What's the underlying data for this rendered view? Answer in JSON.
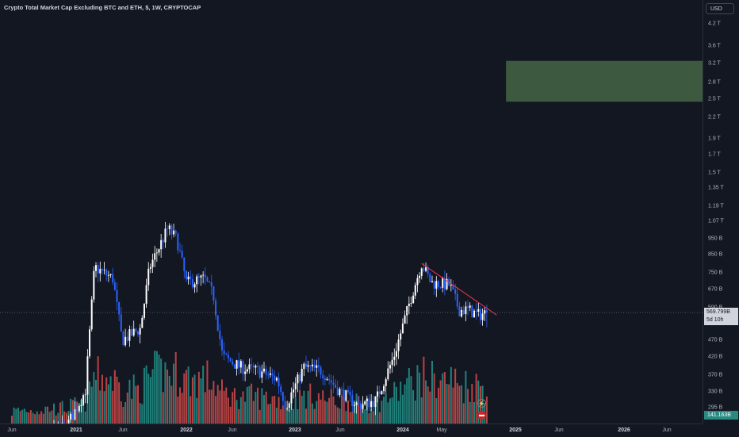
{
  "header": {
    "title": "Crypto Total Market Cap Excluding BTC and ETH, $, 1W, CRYPTOCAP",
    "currency": "USD"
  },
  "price_axis": {
    "labels": [
      "4.2 T",
      "3.6 T",
      "3.2 T",
      "2.8 T",
      "2.5 T",
      "2.2 T",
      "1.9 T",
      "1.7 T",
      "1.5 T",
      "1.35 T",
      "1.19 T",
      "1.07 T",
      "950 B",
      "850 B",
      "750 B",
      "670 B",
      "590 B",
      "530 B",
      "470 B",
      "420 B",
      "370 B",
      "330 B",
      "295 B"
    ],
    "last_price": "569.799B",
    "countdown": "5d 10h",
    "volume_value": "141.163B"
  },
  "time_axis": {
    "labels": [
      {
        "text": "Jun",
        "major": false
      },
      {
        "text": "2021",
        "major": true
      },
      {
        "text": "Jun",
        "major": false
      },
      {
        "text": "2022",
        "major": true
      },
      {
        "text": "Jun",
        "major": false
      },
      {
        "text": "2023",
        "major": true
      },
      {
        "text": "Jun",
        "major": false
      },
      {
        "text": "2024",
        "major": true
      },
      {
        "text": "May",
        "major": false
      },
      {
        "text": "2025",
        "major": true
      },
      {
        "text": "Jun",
        "major": false
      },
      {
        "text": "2026",
        "major": true
      },
      {
        "text": "Jun",
        "major": false
      }
    ]
  },
  "icons": {
    "lightning": "⚡",
    "flag": "▬"
  },
  "colors": {
    "up": "#ffffff",
    "down": "#2962ff",
    "up_volume": "#26a69a",
    "down_volume": "#ef5350",
    "target_zone": "#3d5a40",
    "trendline": "#f23645"
  },
  "chart_data": {
    "type": "candlestick",
    "title": "Crypto Total Market Cap Excluding BTC and ETH, $, 1W, CRYPTOCAP",
    "yscale": "log",
    "unit": "USD",
    "x": [
      "2020-06",
      "2020-09",
      "2020-12",
      "2021-02",
      "2021-03",
      "2021-05",
      "2021-06",
      "2021-08",
      "2021-09",
      "2021-11",
      "2021-12",
      "2022-01",
      "2022-03",
      "2022-04",
      "2022-05",
      "2022-07",
      "2022-09",
      "2022-11",
      "2022-12",
      "2023-02",
      "2023-04",
      "2023-06",
      "2023-08",
      "2023-10",
      "2023-12",
      "2024-02",
      "2024-03",
      "2024-04",
      "2024-06",
      "2024-07",
      "2024-08",
      "2024-09",
      "2024-10"
    ],
    "close": [
      230,
      240,
      260,
      330,
      780,
      720,
      470,
      510,
      780,
      1020,
      940,
      700,
      720,
      640,
      420,
      390,
      380,
      360,
      300,
      390,
      380,
      330,
      300,
      310,
      420,
      650,
      800,
      700,
      690,
      580,
      580,
      560,
      570
    ],
    "last_close": 569.799,
    "volume_last": 141.163,
    "target_zone": {
      "from_date": "2024-12",
      "to": "open",
      "low": 2450,
      "high": 3250
    },
    "trendline": {
      "start_date": "2024-03",
      "start": 800,
      "end_date": "2024-11",
      "end": 560
    }
  }
}
